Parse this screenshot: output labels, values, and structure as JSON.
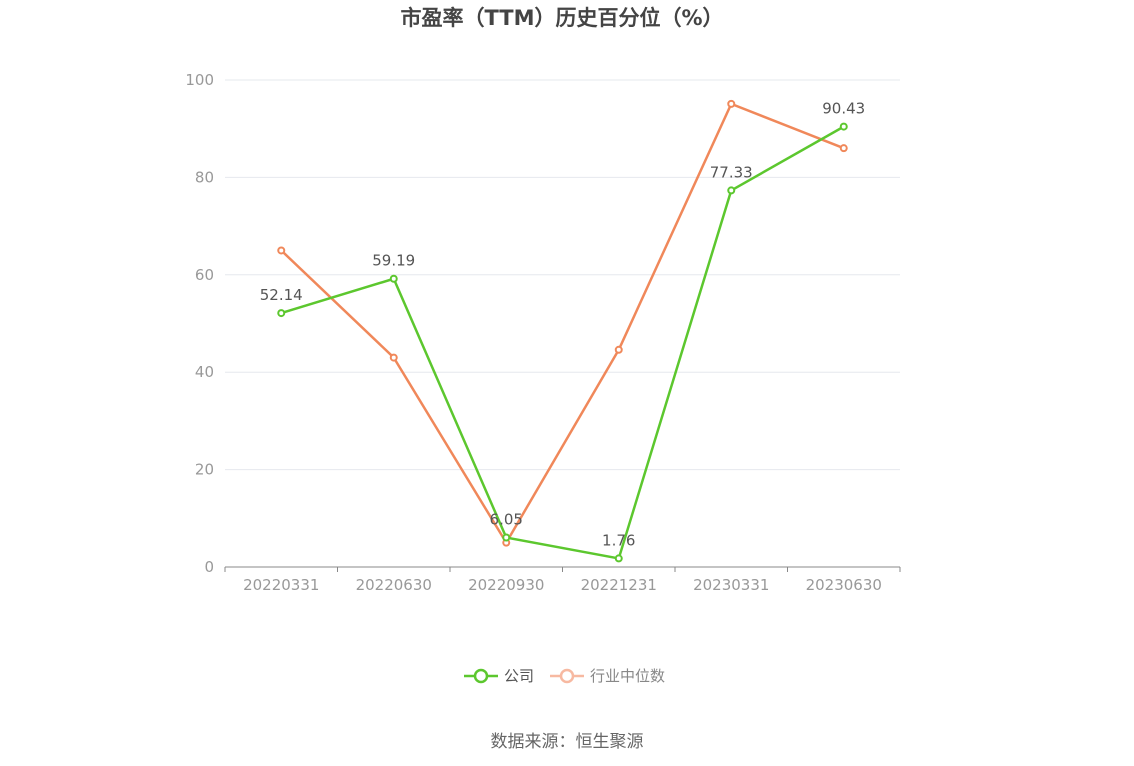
{
  "chart_data": {
    "type": "line",
    "title": "市盈率（TTM）历史百分位（%）",
    "categories": [
      "20220331",
      "20220630",
      "20220930",
      "20221231",
      "20230331",
      "20230630"
    ],
    "ylim": [
      0,
      100
    ],
    "yticks": [
      "0",
      "20",
      "40",
      "60",
      "80",
      "100"
    ],
    "grid": true,
    "legend_position": "bottom-center",
    "series": [
      {
        "name": "公司",
        "color": "#5cc72e",
        "values": [
          52.14,
          59.19,
          6.05,
          1.76,
          77.33,
          90.43
        ],
        "labels": [
          "52.14",
          "59.19",
          "6.05",
          "1.76",
          "77.33",
          "90.43"
        ]
      },
      {
        "name": "行业中位数",
        "color": "#f0885a",
        "legend_color": "#f7b9a1",
        "values": [
          65.0,
          43.0,
          5.0,
          44.6,
          95.1,
          86.0
        ]
      }
    ],
    "source": "数据来源：恒生聚源"
  }
}
